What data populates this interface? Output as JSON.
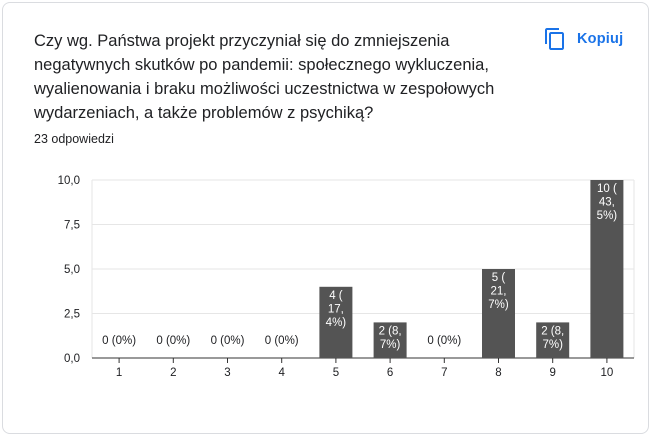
{
  "question": "Czy wg. Państwa projekt przyczyniał się do zmniejszenia negatywnych skutków po pandemii: społecznego wykluczenia, wyalienowania i braku możliwości uczestnictwa w zespołowych wydarzeniach, a także problemów z psychiką?",
  "response_count": "23 odpowiedzi",
  "copy_label": "Kopiuj",
  "colors": {
    "bar": "#545454",
    "accent": "#1a73e8",
    "grid": "#e6e6e6"
  },
  "chart_data": {
    "type": "bar",
    "categories": [
      "1",
      "2",
      "3",
      "4",
      "5",
      "6",
      "7",
      "8",
      "9",
      "10"
    ],
    "values": [
      0,
      0,
      0,
      0,
      4,
      2,
      0,
      5,
      2,
      10
    ],
    "data_labels": [
      [
        "0 (0%)"
      ],
      [
        "0 (0%)"
      ],
      [
        "0 (0%)"
      ],
      [
        "0 (0%)"
      ],
      [
        "4 (",
        "17,",
        "4%)"
      ],
      [
        "2 (8,",
        "7%)"
      ],
      [
        "0 (0%)"
      ],
      [
        "5 (",
        "21,",
        "7%)"
      ],
      [
        "2 (8,",
        "7%)"
      ],
      [
        "10 (",
        "43,",
        "5%)"
      ]
    ],
    "ylim": [
      0,
      10
    ],
    "yticks": [
      0,
      2.5,
      5,
      7.5,
      10
    ],
    "ytick_labels": [
      "0,0",
      "2,5",
      "5,0",
      "7,5",
      "10,0"
    ],
    "grid": true,
    "title": "",
    "xlabel": "",
    "ylabel": ""
  }
}
